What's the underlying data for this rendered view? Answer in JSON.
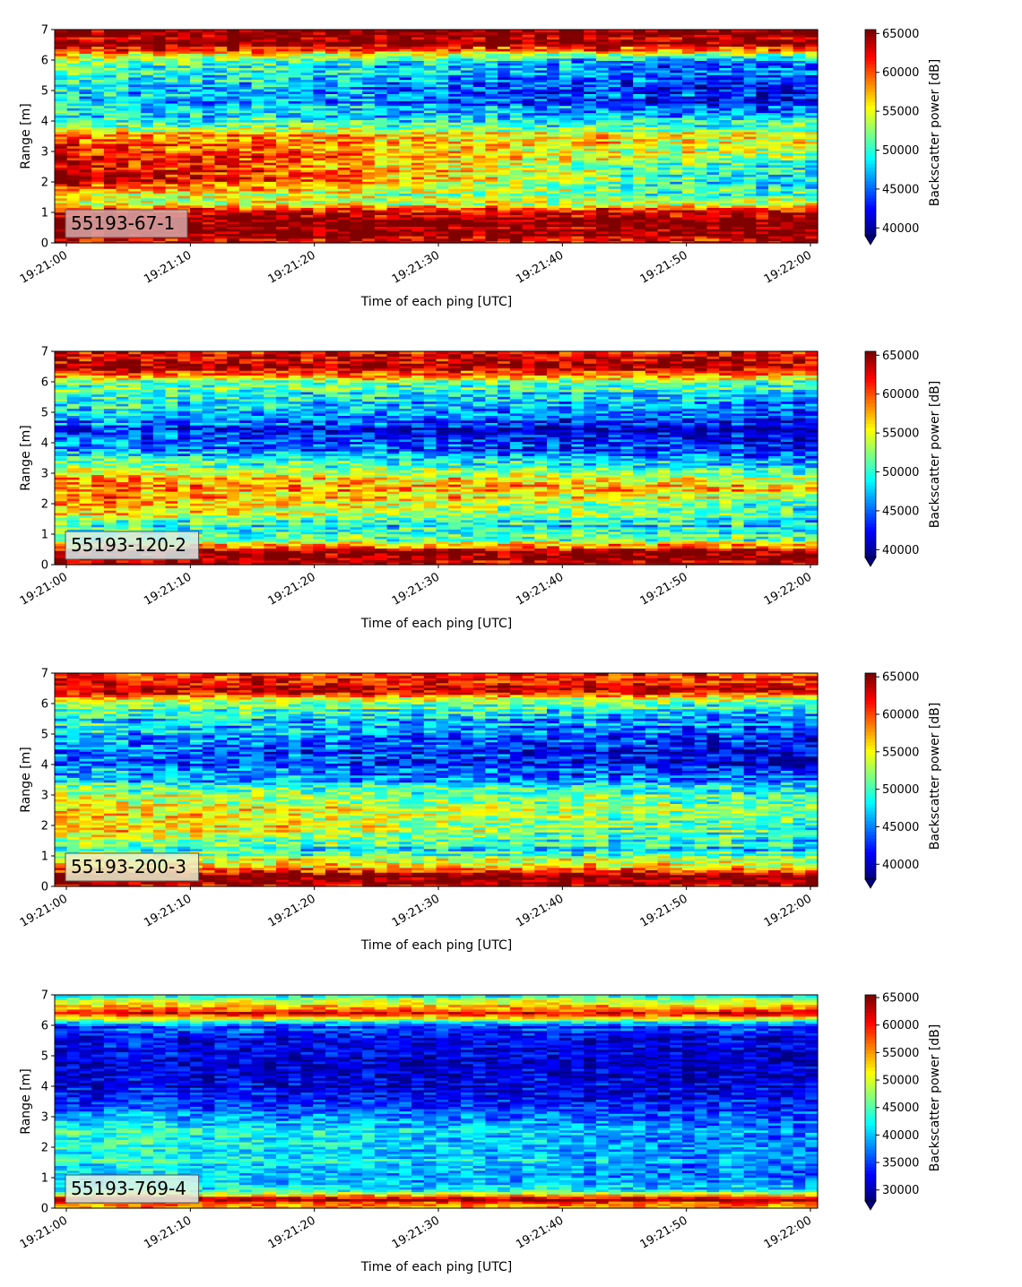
{
  "chart_data": [
    {
      "type": "heatmap",
      "colormap": "jet",
      "annotation": "55193-67-1",
      "annotation_bg": "#d9a8a8",
      "xlabel": "Time of each ping [UTC]",
      "ylabel": "Range [m]",
      "clabel": "Backscatter power [dB]",
      "xticks": [
        "19:21:00",
        "19:21:10",
        "19:21:20",
        "19:21:30",
        "19:21:40",
        "19:21:50",
        "19:22:00"
      ],
      "yticks": [
        0,
        1,
        2,
        3,
        4,
        5,
        6,
        7
      ],
      "ylim": [
        0,
        7
      ],
      "clim": [
        39000,
        65500
      ],
      "cticks": [
        40000,
        45000,
        50000,
        55000,
        60000,
        65000
      ],
      "extend": "min",
      "profile": [
        {
          "range": 0.1,
          "start": 63000,
          "end": 63000
        },
        {
          "range": 0.5,
          "start": 66000,
          "end": 66000
        },
        {
          "range": 1.0,
          "start": 64000,
          "end": 64000
        },
        {
          "range": 1.4,
          "start": 53000,
          "end": 52000
        },
        {
          "range": 2.0,
          "start": 64000,
          "end": 47000
        },
        {
          "range": 2.5,
          "start": 65000,
          "end": 49000
        },
        {
          "range": 3.0,
          "start": 62000,
          "end": 52000
        },
        {
          "range": 3.5,
          "start": 59000,
          "end": 55000
        },
        {
          "range": 4.0,
          "start": 50000,
          "end": 49000
        },
        {
          "range": 4.5,
          "start": 49000,
          "end": 43000
        },
        {
          "range": 5.0,
          "start": 50000,
          "end": 42000
        },
        {
          "range": 5.5,
          "start": 50000,
          "end": 43000
        },
        {
          "range": 6.0,
          "start": 53000,
          "end": 45000
        },
        {
          "range": 6.5,
          "start": 65000,
          "end": 64000
        },
        {
          "range": 7.0,
          "start": 66000,
          "end": 66000
        }
      ]
    },
    {
      "type": "heatmap",
      "colormap": "jet",
      "annotation": "55193-120-2",
      "annotation_bg": "#d6ecec",
      "xlabel": "Time of each ping [UTC]",
      "ylabel": "Range [m]",
      "clabel": "Backscatter power [dB]",
      "xticks": [
        "19:21:00",
        "19:21:10",
        "19:21:20",
        "19:21:30",
        "19:21:40",
        "19:21:50",
        "19:22:00"
      ],
      "yticks": [
        0,
        1,
        2,
        3,
        4,
        5,
        6,
        7
      ],
      "ylim": [
        0,
        7
      ],
      "clim": [
        39000,
        65500
      ],
      "cticks": [
        40000,
        45000,
        50000,
        55000,
        60000,
        65000
      ],
      "extend": "min",
      "profile": [
        {
          "range": 0.1,
          "start": 64000,
          "end": 64000
        },
        {
          "range": 0.4,
          "start": 66000,
          "end": 66000
        },
        {
          "range": 0.8,
          "start": 52000,
          "end": 52000
        },
        {
          "range": 1.3,
          "start": 50000,
          "end": 48000
        },
        {
          "range": 2.0,
          "start": 60000,
          "end": 52000
        },
        {
          "range": 2.5,
          "start": 58000,
          "end": 56000
        },
        {
          "range": 3.0,
          "start": 57000,
          "end": 52000
        },
        {
          "range": 3.5,
          "start": 50000,
          "end": 46000
        },
        {
          "range": 4.0,
          "start": 45000,
          "end": 41000
        },
        {
          "range": 4.5,
          "start": 45000,
          "end": 41000
        },
        {
          "range": 5.0,
          "start": 48000,
          "end": 44000
        },
        {
          "range": 5.5,
          "start": 50000,
          "end": 47000
        },
        {
          "range": 6.0,
          "start": 53000,
          "end": 52000
        },
        {
          "range": 6.5,
          "start": 65000,
          "end": 65000
        },
        {
          "range": 7.0,
          "start": 62000,
          "end": 62000
        }
      ]
    },
    {
      "type": "heatmap",
      "colormap": "jet",
      "annotation": "55193-200-3",
      "annotation_bg": "#ecf0cf",
      "xlabel": "Time of each ping [UTC]",
      "ylabel": "Range [m]",
      "clabel": "Backscatter power [dB]",
      "xticks": [
        "19:21:00",
        "19:21:10",
        "19:21:20",
        "19:21:30",
        "19:21:40",
        "19:21:50",
        "19:22:00"
      ],
      "yticks": [
        0,
        1,
        2,
        3,
        4,
        5,
        6,
        7
      ],
      "ylim": [
        0,
        7
      ],
      "clim": [
        38000,
        65500
      ],
      "cticks": [
        40000,
        45000,
        50000,
        55000,
        60000,
        65000
      ],
      "extend": "min",
      "profile": [
        {
          "range": 0.1,
          "start": 64000,
          "end": 64000
        },
        {
          "range": 0.35,
          "start": 66000,
          "end": 66000
        },
        {
          "range": 0.7,
          "start": 56000,
          "end": 55000
        },
        {
          "range": 1.2,
          "start": 50000,
          "end": 48000
        },
        {
          "range": 2.0,
          "start": 57000,
          "end": 50000
        },
        {
          "range": 2.5,
          "start": 56000,
          "end": 52000
        },
        {
          "range": 3.0,
          "start": 54000,
          "end": 50000
        },
        {
          "range": 3.5,
          "start": 47000,
          "end": 45000
        },
        {
          "range": 4.0,
          "start": 45000,
          "end": 41000
        },
        {
          "range": 4.5,
          "start": 45000,
          "end": 41000
        },
        {
          "range": 5.0,
          "start": 47000,
          "end": 43000
        },
        {
          "range": 5.5,
          "start": 49000,
          "end": 45000
        },
        {
          "range": 6.0,
          "start": 52000,
          "end": 50000
        },
        {
          "range": 6.5,
          "start": 64000,
          "end": 64000
        },
        {
          "range": 7.0,
          "start": 60000,
          "end": 60000
        }
      ]
    },
    {
      "type": "heatmap",
      "colormap": "jet",
      "annotation": "55193-769-4",
      "annotation_bg": "#e4f2e6",
      "xlabel": "Time of each ping [UTC]",
      "ylabel": "Range [m]",
      "clabel": "Backscatter power [dB]",
      "xticks": [
        "19:21:00",
        "19:21:10",
        "19:21:20",
        "19:21:30",
        "19:21:40",
        "19:21:50",
        "19:22:00"
      ],
      "yticks": [
        0,
        1,
        2,
        3,
        4,
        5,
        6,
        7
      ],
      "ylim": [
        0,
        7
      ],
      "clim": [
        28000,
        65500
      ],
      "cticks": [
        30000,
        35000,
        40000,
        45000,
        50000,
        55000,
        60000,
        65000
      ],
      "extend": "min",
      "profile": [
        {
          "range": 0.1,
          "start": 55000,
          "end": 55000
        },
        {
          "range": 0.3,
          "start": 66000,
          "end": 66000
        },
        {
          "range": 0.6,
          "start": 42000,
          "end": 40000
        },
        {
          "range": 1.0,
          "start": 41000,
          "end": 36000
        },
        {
          "range": 1.5,
          "start": 44000,
          "end": 38000
        },
        {
          "range": 2.0,
          "start": 44000,
          "end": 38000
        },
        {
          "range": 2.5,
          "start": 45000,
          "end": 38000
        },
        {
          "range": 3.0,
          "start": 40000,
          "end": 36000
        },
        {
          "range": 3.5,
          "start": 34000,
          "end": 32000
        },
        {
          "range": 4.0,
          "start": 32000,
          "end": 31000
        },
        {
          "range": 4.5,
          "start": 32000,
          "end": 31000
        },
        {
          "range": 5.0,
          "start": 32000,
          "end": 31000
        },
        {
          "range": 5.5,
          "start": 33000,
          "end": 32000
        },
        {
          "range": 6.0,
          "start": 36000,
          "end": 35000
        },
        {
          "range": 6.4,
          "start": 62000,
          "end": 62000
        },
        {
          "range": 7.0,
          "start": 42000,
          "end": 42000
        }
      ]
    }
  ]
}
